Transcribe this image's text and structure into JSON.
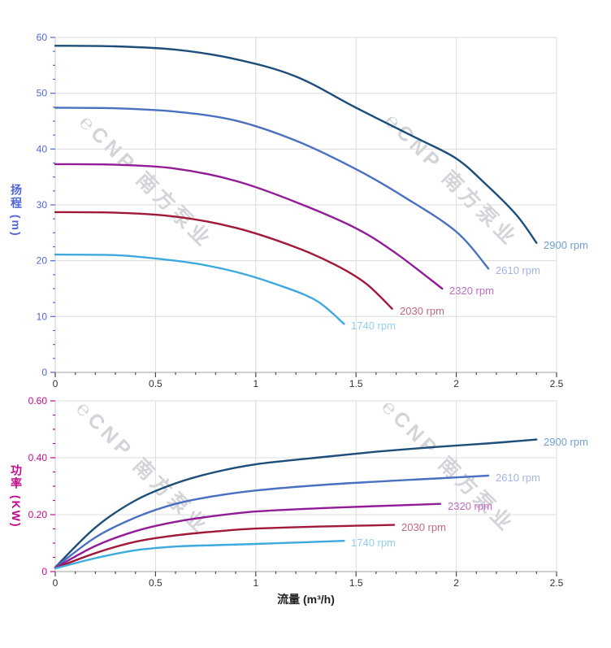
{
  "watermark": {
    "text": "℮CNP 南方泵业"
  },
  "x_title": "流量 (m³/h)",
  "chart_data": [
    {
      "type": "line",
      "name": "head-curve-chart",
      "y_title": "扬程 (m)",
      "axis_color": "#5166d8",
      "grid": true,
      "legend_position": "end-of-line",
      "x": {
        "min": 0,
        "max": 2.5,
        "major": 0.5,
        "minor": 0.1,
        "tick_labels": [
          "0",
          "0.5",
          "1",
          "1.5",
          "2",
          "2.5"
        ]
      },
      "y": {
        "min": 0,
        "max": 60,
        "major": 10,
        "minor": 2.5,
        "tick_labels": [
          "0",
          "10",
          "20",
          "30",
          "40",
          "50",
          "60"
        ]
      },
      "series": [
        {
          "name": "2900 rpm",
          "color": "#1d4e79",
          "label_color": "#6f9ed6",
          "points": [
            [
              0,
              58.5
            ],
            [
              0.3,
              58.4
            ],
            [
              0.6,
              57.8
            ],
            [
              0.9,
              56.1
            ],
            [
              1.2,
              53.0
            ],
            [
              1.5,
              47.4
            ],
            [
              1.8,
              42.0
            ],
            [
              2.0,
              38.3
            ],
            [
              2.15,
              33.6
            ],
            [
              2.3,
              28.2
            ],
            [
              2.4,
              23.2
            ]
          ]
        },
        {
          "name": "2610 rpm",
          "color": "#4a70c0",
          "label_color": "#a2b5e6",
          "points": [
            [
              0,
              47.4
            ],
            [
              0.3,
              47.3
            ],
            [
              0.6,
              46.7
            ],
            [
              0.9,
              45.1
            ],
            [
              1.2,
              41.5
            ],
            [
              1.5,
              36.4
            ],
            [
              1.75,
              31.2
            ],
            [
              2.0,
              25.2
            ],
            [
              2.16,
              18.6
            ]
          ]
        },
        {
          "name": "2320 rpm",
          "color": "#921c96",
          "label_color": "#c06cc0",
          "points": [
            [
              0,
              37.3
            ],
            [
              0.3,
              37.2
            ],
            [
              0.6,
              36.5
            ],
            [
              0.9,
              34.3
            ],
            [
              1.2,
              30.5
            ],
            [
              1.5,
              25.8
            ],
            [
              1.7,
              21.3
            ],
            [
              1.93,
              15.0
            ]
          ]
        },
        {
          "name": "2030 rpm",
          "color": "#a21839",
          "label_color": "#c4687e",
          "points": [
            [
              0,
              28.7
            ],
            [
              0.3,
              28.6
            ],
            [
              0.6,
              27.9
            ],
            [
              0.9,
              25.9
            ],
            [
              1.2,
              22.4
            ],
            [
              1.4,
              19.2
            ],
            [
              1.55,
              15.9
            ],
            [
              1.68,
              11.4
            ]
          ]
        },
        {
          "name": "1740 rpm",
          "color": "#3daadf",
          "label_color": "#8fd0f2",
          "points": [
            [
              0,
              21.1
            ],
            [
              0.3,
              21.0
            ],
            [
              0.5,
              20.4
            ],
            [
              0.7,
              19.5
            ],
            [
              0.9,
              18.0
            ],
            [
              1.1,
              15.8
            ],
            [
              1.3,
              12.9
            ],
            [
              1.44,
              8.7
            ]
          ]
        }
      ]
    },
    {
      "type": "line",
      "name": "power-curve-chart",
      "y_title": "功率 (KW)",
      "axis_color": "#c20a8e",
      "grid": true,
      "legend_position": "end-of-line",
      "x": {
        "min": 0,
        "max": 2.5,
        "major": 0.5,
        "minor": 0.1,
        "tick_labels": [
          "0",
          "0.5",
          "1",
          "1.5",
          "2",
          "2.5"
        ]
      },
      "y": {
        "min": 0,
        "max": 0.6,
        "major": 0.2,
        "minor": 0.05,
        "tick_labels": [
          "0",
          "0.20",
          "0.40",
          "0.60"
        ]
      },
      "series": [
        {
          "name": "2900 rpm",
          "color": "#1d4e79",
          "label_color": "#6f9ed6",
          "points": [
            [
              0,
              0.015
            ],
            [
              0.2,
              0.155
            ],
            [
              0.4,
              0.25
            ],
            [
              0.6,
              0.31
            ],
            [
              0.8,
              0.35
            ],
            [
              1.0,
              0.377
            ],
            [
              1.3,
              0.4
            ],
            [
              1.6,
              0.421
            ],
            [
              1.9,
              0.438
            ],
            [
              2.15,
              0.45
            ],
            [
              2.4,
              0.464
            ]
          ]
        },
        {
          "name": "2610 rpm",
          "color": "#4a70c0",
          "label_color": "#a2b5e6",
          "points": [
            [
              0,
              0.014
            ],
            [
              0.2,
              0.12
            ],
            [
              0.4,
              0.19
            ],
            [
              0.6,
              0.238
            ],
            [
              0.8,
              0.266
            ],
            [
              1.0,
              0.285
            ],
            [
              1.3,
              0.303
            ],
            [
              1.6,
              0.316
            ],
            [
              1.9,
              0.327
            ],
            [
              2.16,
              0.337
            ]
          ]
        },
        {
          "name": "2320 rpm",
          "color": "#921c96",
          "label_color": "#c06cc0",
          "points": [
            [
              0,
              0.013
            ],
            [
              0.2,
              0.09
            ],
            [
              0.4,
              0.142
            ],
            [
              0.6,
              0.175
            ],
            [
              0.8,
              0.196
            ],
            [
              1.0,
              0.211
            ],
            [
              1.3,
              0.222
            ],
            [
              1.6,
              0.23
            ],
            [
              1.92,
              0.238
            ]
          ]
        },
        {
          "name": "2030 rpm",
          "color": "#a21839",
          "label_color": "#c4687e",
          "points": [
            [
              0,
              0.012
            ],
            [
              0.2,
              0.065
            ],
            [
              0.4,
              0.105
            ],
            [
              0.6,
              0.127
            ],
            [
              0.8,
              0.141
            ],
            [
              1.0,
              0.151
            ],
            [
              1.3,
              0.158
            ],
            [
              1.5,
              0.161
            ],
            [
              1.69,
              0.164
            ]
          ]
        },
        {
          "name": "1740 rpm",
          "color": "#3daadf",
          "label_color": "#8fd0f2",
          "points": [
            [
              0,
              0.011
            ],
            [
              0.2,
              0.047
            ],
            [
              0.4,
              0.075
            ],
            [
              0.6,
              0.088
            ],
            [
              0.8,
              0.093
            ],
            [
              1.0,
              0.097
            ],
            [
              1.2,
              0.102
            ],
            [
              1.44,
              0.108
            ]
          ]
        }
      ]
    }
  ]
}
